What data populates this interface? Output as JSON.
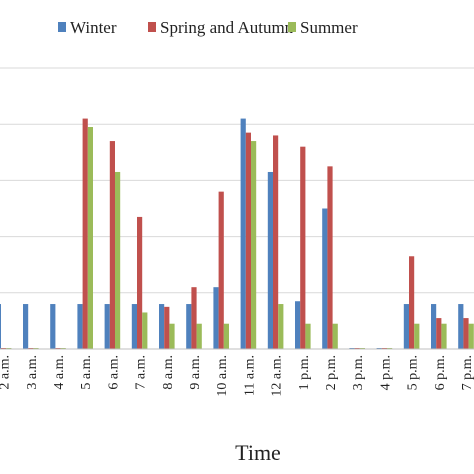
{
  "chart_data": {
    "type": "bar",
    "xlabel": "Time",
    "ylabel": "",
    "categories": [
      "2 a.m.",
      "3 a.m.",
      "4 a.m.",
      "5 a.m.",
      "6 a.m.",
      "7 a.m.",
      "8 a.m.",
      "9 a.m.",
      "10 a.m.",
      "11 a.m.",
      "12 a.m.",
      "1 p.m.",
      "2 p.m.",
      "3 p.m.",
      "4 p.m.",
      "5 p.m.",
      "6 p.m.",
      "7 p.m."
    ],
    "ylim": [
      0,
      5
    ],
    "grid": true,
    "legend": "top",
    "series": [
      {
        "name": "Winter",
        "color": "#4f81bd",
        "values": [
          0.8,
          0.8,
          0.8,
          0.8,
          0.8,
          0.8,
          0.8,
          0.8,
          1.1,
          4.1,
          3.15,
          0.85,
          2.5,
          0,
          0,
          0.8,
          0.8,
          0.8
        ]
      },
      {
        "name": "Spring and Autumn",
        "color": "#c0504d",
        "values": [
          0,
          0,
          0,
          4.1,
          3.7,
          2.35,
          0.75,
          1.1,
          2.8,
          3.85,
          3.8,
          3.6,
          3.25,
          0,
          0,
          1.65,
          0.55,
          0.55
        ]
      },
      {
        "name": "Summer",
        "color": "#9bbb59",
        "values": [
          0,
          0,
          0,
          3.95,
          3.15,
          0.65,
          0.45,
          0.45,
          0.45,
          3.7,
          0.8,
          0.45,
          0.45,
          0,
          0,
          0.45,
          0.45,
          0.45
        ]
      }
    ]
  }
}
